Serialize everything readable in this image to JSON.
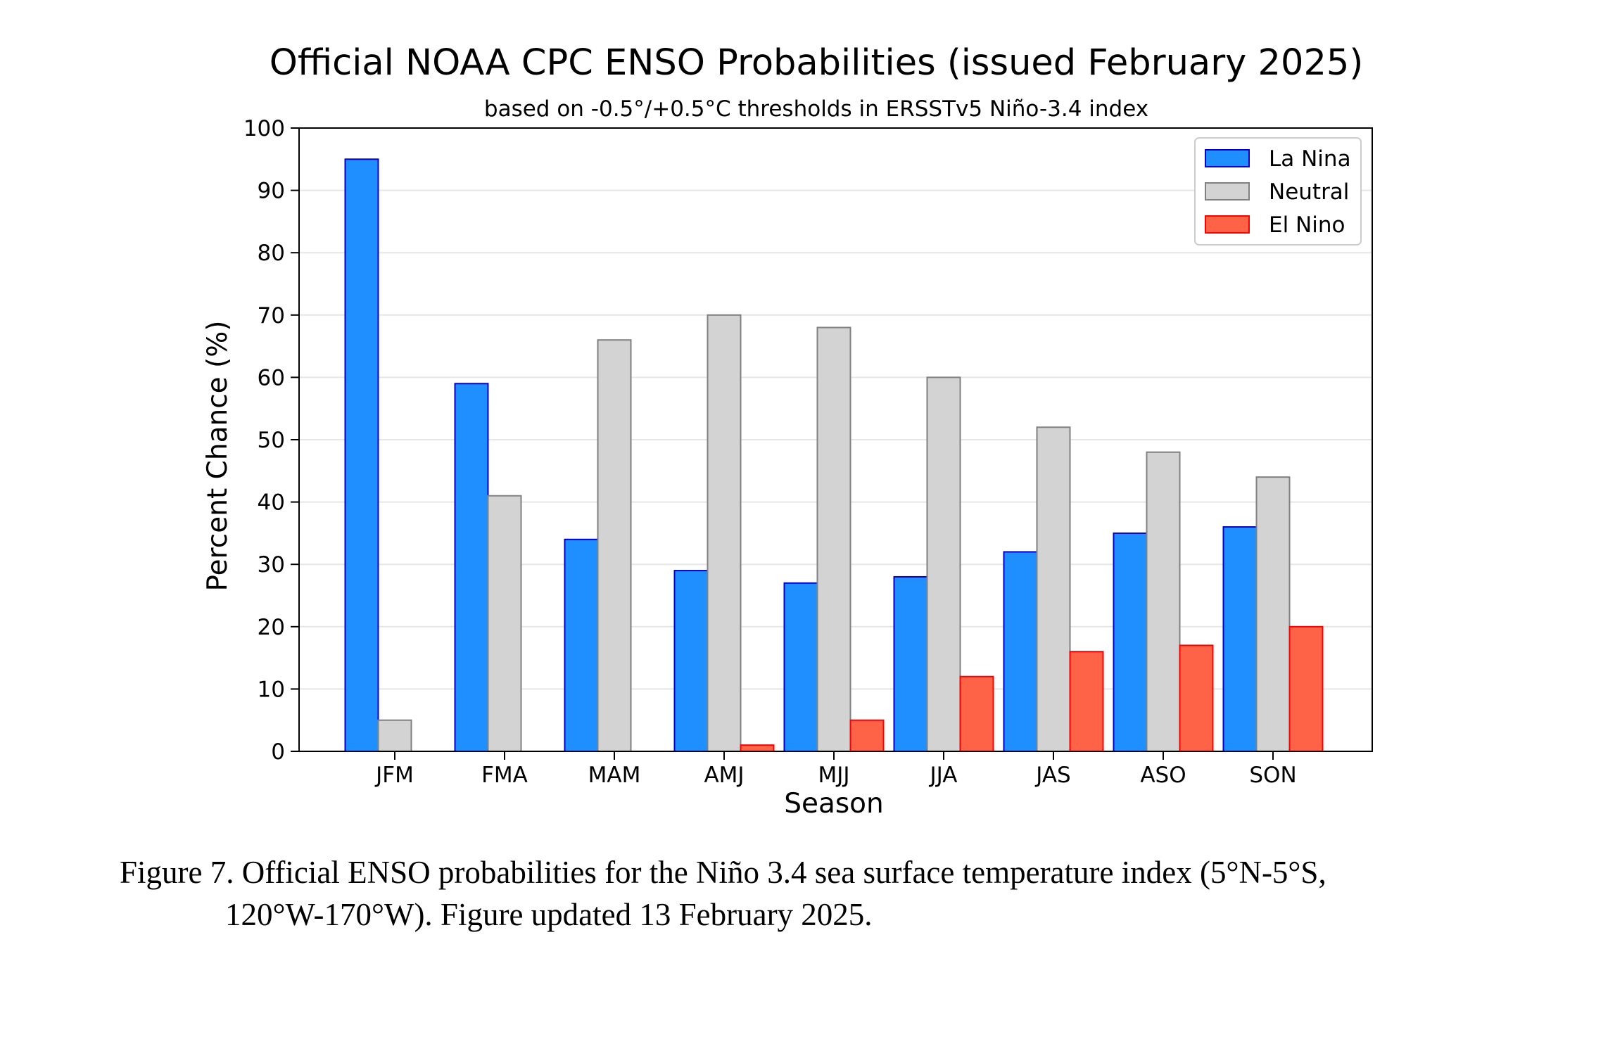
{
  "chart_data": {
    "type": "bar",
    "title": "Official NOAA CPC ENSO Probabilities (issued February 2025)",
    "subtitle": "based on -0.5°/+0.5°C thresholds in ERSSTv5 Niño-3.4 index",
    "xlabel": "Season",
    "ylabel": "Percent Chance (%)",
    "ylim": [
      0,
      100
    ],
    "yticks": [
      0,
      10,
      20,
      30,
      40,
      50,
      60,
      70,
      80,
      90,
      100
    ],
    "grid": true,
    "legend_position": "top-right",
    "categories": [
      "JFM",
      "FMA",
      "MAM",
      "AMJ",
      "MJJ",
      "JJA",
      "JAS",
      "ASO",
      "SON"
    ],
    "series": [
      {
        "name": "La Nina",
        "color": "#1f8fff",
        "edge": "#0000cc",
        "values": [
          95,
          59,
          34,
          29,
          27,
          28,
          32,
          35,
          36
        ]
      },
      {
        "name": "Neutral",
        "color": "#d3d3d3",
        "edge": "#808080",
        "values": [
          5,
          41,
          66,
          70,
          68,
          60,
          52,
          48,
          44
        ]
      },
      {
        "name": "El Nino",
        "color": "#ff6347",
        "edge": "#ff0000",
        "values": [
          0,
          0,
          0,
          1,
          5,
          12,
          16,
          17,
          20
        ]
      }
    ]
  },
  "caption": {
    "line1": "Figure 7. Official ENSO probabilities for the Niño 3.4 sea surface temperature index (5°N-5°S,",
    "line2": "120°W-170°W). Figure updated 13 February 2025."
  }
}
